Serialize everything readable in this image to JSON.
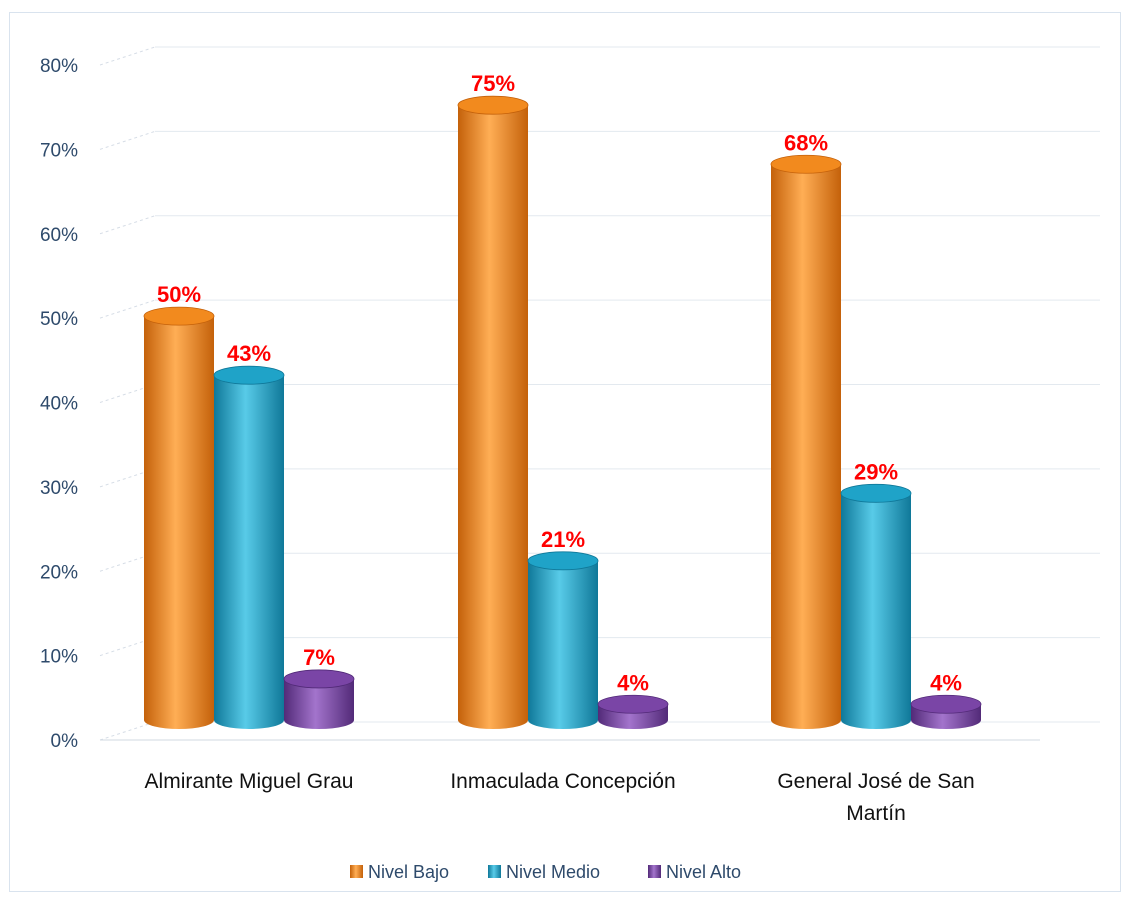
{
  "chart_data": {
    "type": "bar",
    "title": "",
    "xlabel": "",
    "ylabel": "",
    "ylim": [
      0,
      80
    ],
    "y_ticks": [
      "0%",
      "10%",
      "20%",
      "30%",
      "40%",
      "50%",
      "60%",
      "70%",
      "80%"
    ],
    "y_tick_values": [
      0,
      10,
      20,
      30,
      40,
      50,
      60,
      70,
      80
    ],
    "categories": [
      [
        "Almirante Miguel Grau"
      ],
      [
        "Inmaculada Concepción"
      ],
      [
        "General José de San",
        "Martín"
      ]
    ],
    "series": [
      {
        "name": "Nivel Bajo",
        "values": [
          50,
          75,
          68
        ],
        "labels": [
          "50%",
          "75%",
          "68%"
        ],
        "color": "#f28a1e",
        "dark": "#c4610a",
        "light": "#ffae55"
      },
      {
        "name": "Nivel Medio",
        "values": [
          43,
          21,
          29
        ],
        "labels": [
          "43%",
          "21%",
          "29%"
        ],
        "color": "#1fa3c8",
        "dark": "#0f7899",
        "light": "#58cbe8"
      },
      {
        "name": "Nivel Alto",
        "values": [
          7,
          4,
          4
        ],
        "labels": [
          "7%",
          "4%",
          "4%"
        ],
        "color": "#7a45a6",
        "dark": "#522a78",
        "light": "#a374cc"
      }
    ],
    "grid": true,
    "legend_position": "bottom",
    "label_color": "#ff0000"
  }
}
